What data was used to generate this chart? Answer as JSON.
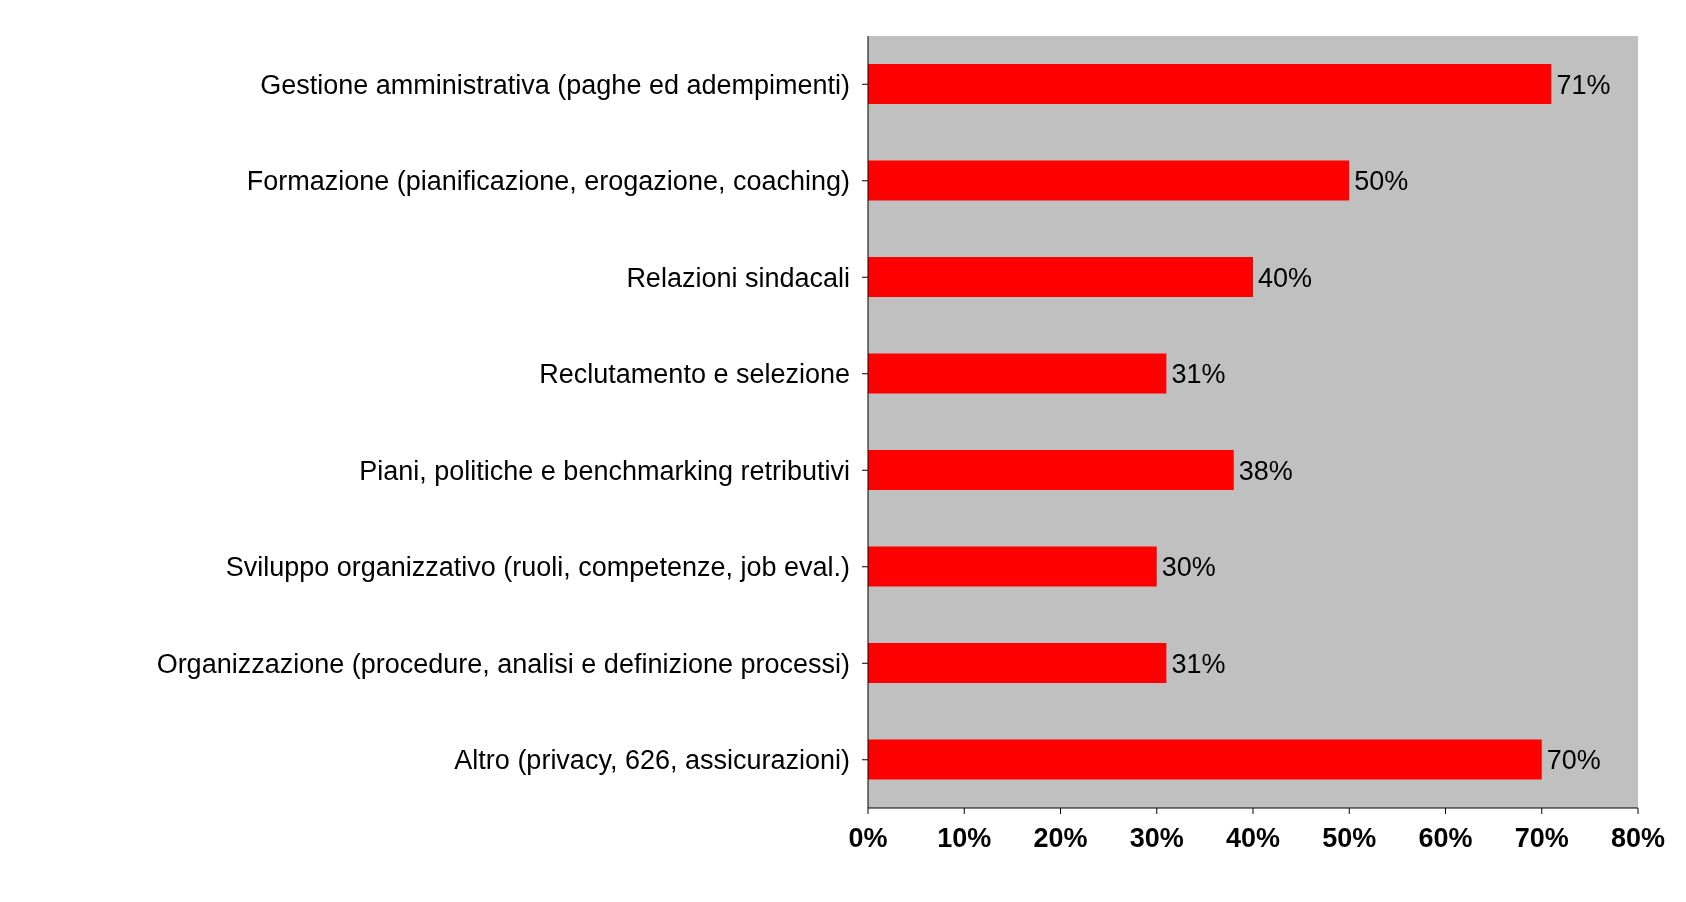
{
  "chart_data": {
    "type": "bar",
    "orientation": "horizontal",
    "categories": [
      "Gestione amministrativa (paghe ed adempimenti)",
      "Formazione (pianificazione, erogazione, coaching)",
      "Relazioni sindacali",
      "Reclutamento e selezione",
      "Piani, politiche e benchmarking retributivi",
      "Sviluppo organizzativo (ruoli, competenze, job eval.)",
      "Organizzazione (procedure, analisi e definizione processi)",
      "Altro (privacy, 626, assicurazioni)"
    ],
    "values": [
      71,
      50,
      40,
      31,
      38,
      30,
      31,
      70
    ],
    "value_labels": [
      "71%",
      "50%",
      "40%",
      "31%",
      "38%",
      "30%",
      "31%",
      "70%"
    ],
    "color": "#ff0000",
    "xlim": [
      0,
      80
    ],
    "xticks": [
      {
        "value": 0,
        "label": "0%"
      },
      {
        "value": 10,
        "label": "10%"
      },
      {
        "value": 20,
        "label": "20%"
      },
      {
        "value": 30,
        "label": "30%"
      },
      {
        "value": 40,
        "label": "40%"
      },
      {
        "value": 50,
        "label": "50%"
      },
      {
        "value": 60,
        "label": "60%"
      },
      {
        "value": 70,
        "label": "70%"
      },
      {
        "value": 80,
        "label": "80%"
      }
    ],
    "legend": false
  }
}
